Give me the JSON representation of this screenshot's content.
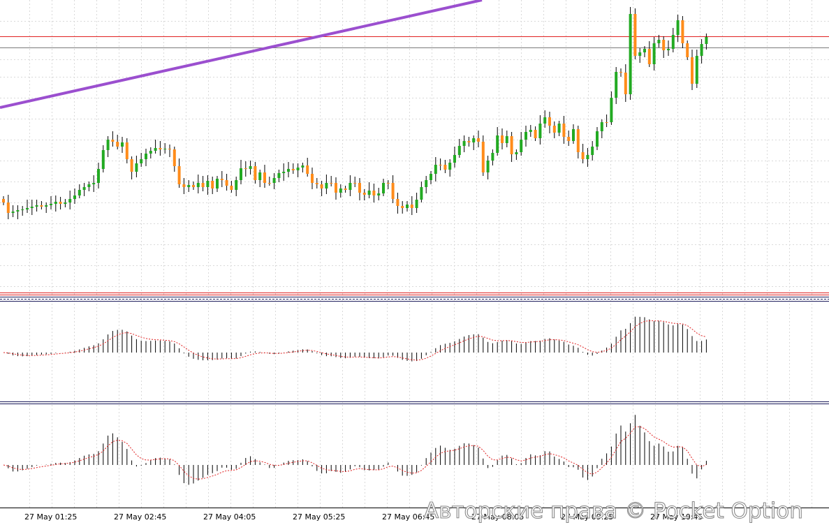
{
  "chart_data": {
    "type": "candlestick",
    "x_tick_labels": [
      "27 May 01:25",
      "27 May 02:45",
      "27 May 04:05",
      "27 May 05:25",
      "27 May 06:45",
      "27 May 08:05",
      "27 May 09:25",
      "27 May 10:45"
    ],
    "bull_color": "#22aa22",
    "bear_color": "#ff8c1a",
    "trendline_color": "#9b4fcf",
    "level_line_color": "#e02020",
    "current_line_color": "#7a7a7a",
    "candles_close": [
      290,
      305,
      303,
      301,
      300,
      298,
      296,
      294,
      296,
      294,
      292,
      289,
      292,
      290,
      285,
      280,
      272,
      268,
      264,
      262,
      242,
      215,
      200,
      203,
      210,
      204,
      228,
      246,
      234,
      228,
      220,
      216,
      212,
      214,
      213,
      214,
      238,
      264,
      268,
      265,
      268,
      262,
      268,
      259,
      270,
      256,
      258,
      266,
      272,
      258,
      241,
      242,
      238,
      258,
      247,
      262,
      262,
      255,
      248,
      246,
      242,
      244,
      240,
      237,
      249,
      262,
      264,
      270,
      262,
      262,
      276,
      270,
      272,
      262,
      262,
      276,
      279,
      273,
      280,
      277,
      262,
      262,
      285,
      295,
      298,
      293,
      298,
      286,
      268,
      258,
      249,
      236,
      236,
      243,
      233,
      222,
      209,
      202,
      204,
      198,
      203,
      247,
      230,
      219,
      194,
      205,
      195,
      221,
      218,
      200,
      189,
      186,
      198,
      177,
      168,
      180,
      190,
      177,
      196,
      202,
      185,
      218,
      228,
      222,
      210,
      188,
      175,
      175,
      140,
      103,
      104,
      135,
      20,
      80,
      75,
      70,
      92,
      62,
      57,
      72,
      70,
      50,
      29,
      62,
      82,
      120,
      80,
      63,
      53
    ]
  }
}
